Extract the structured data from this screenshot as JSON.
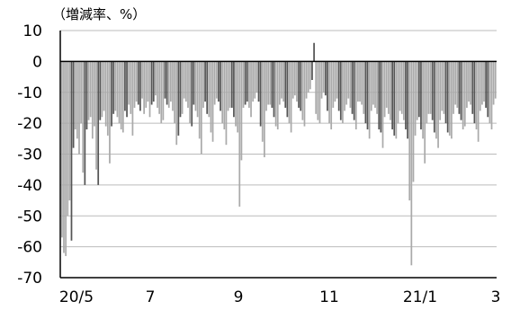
{
  "chart_data": {
    "type": "bar",
    "unit_label": "（増減率、%）",
    "ylim": [
      -70,
      10
    ],
    "y_ticks": [
      "10",
      "0",
      "-10",
      "-20",
      "-30",
      "-40",
      "-50",
      "-60",
      "-70"
    ],
    "x_ticks": [
      "20/5",
      "7",
      "9",
      "11",
      "21/1",
      "3"
    ],
    "grid": true,
    "legend": "none",
    "colors": {
      "light": "#aaaaaa",
      "dark": "#555555",
      "axis": "#000000",
      "grid": "#bbbbbb"
    },
    "series": [
      {
        "values": [
          -57,
          -62,
          -63,
          -50,
          -45,
          -58,
          -28,
          -22,
          -25,
          -30,
          -20,
          -36,
          -40,
          -22,
          -19,
          -18,
          -25,
          -21,
          -35,
          -40,
          -19,
          -18,
          -16,
          -21,
          -24,
          -33,
          -21,
          -17,
          -16,
          -18,
          -20,
          -22,
          -23,
          -16,
          -18,
          -14,
          -17,
          -24,
          -15,
          -13,
          -14,
          -16,
          -12,
          -17,
          -15,
          -13,
          -18,
          -14,
          -13,
          -11,
          -15,
          -17,
          -20,
          -19,
          -12,
          -14,
          -15,
          -13,
          -16,
          -20,
          -27,
          -24,
          -18,
          -17,
          -12,
          -13,
          -15,
          -20,
          -21,
          -14,
          -16,
          -18,
          -25,
          -30,
          -15,
          -13,
          -17,
          -18,
          -23,
          -26,
          -14,
          -12,
          -13,
          -16,
          -20,
          -22,
          -27,
          -16,
          -15,
          -15,
          -18,
          -21,
          -23,
          -47,
          -32,
          -15,
          -14,
          -13,
          -15,
          -18,
          -13,
          -12,
          -10,
          -13,
          -21,
          -26,
          -31,
          -16,
          -14,
          -14,
          -15,
          -18,
          -21,
          -22,
          -14,
          -12,
          -13,
          -15,
          -18,
          -20,
          -23,
          -12,
          -11,
          -13,
          -15,
          -16,
          -19,
          -21,
          -12,
          -10,
          -9,
          -6,
          6,
          -17,
          -19,
          -20,
          -12,
          -10,
          -11,
          -16,
          -20,
          -22,
          -15,
          -13,
          -12,
          -16,
          -19,
          -20,
          -16,
          -14,
          -12,
          -15,
          -17,
          -19,
          -22,
          -13,
          -13,
          -14,
          -17,
          -20,
          -22,
          -25,
          -16,
          -14,
          -15,
          -17,
          -22,
          -23,
          -28,
          -18,
          -15,
          -17,
          -19,
          -22,
          -24,
          -25,
          -20,
          -16,
          -17,
          -19,
          -22,
          -25,
          -45,
          -66,
          -39,
          -24,
          -19,
          -18,
          -22,
          -25,
          -33,
          -20,
          -17,
          -17,
          -19,
          -23,
          -25,
          -28,
          -19,
          -16,
          -17,
          -20,
          -23,
          -24,
          -25,
          -17,
          -14,
          -15,
          -17,
          -19,
          -22,
          -21,
          -15,
          -13,
          -14,
          -17,
          -20,
          -22,
          -26,
          -16,
          -14,
          -13,
          -15,
          -18,
          -20,
          -22,
          -14,
          -12
        ]
      }
    ]
  }
}
